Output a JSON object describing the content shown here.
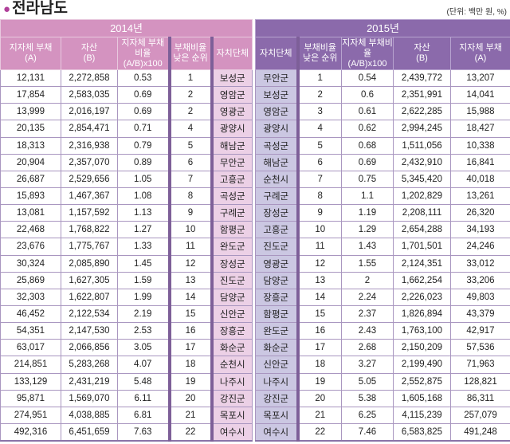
{
  "title": "전라남도",
  "unit": "(단위: 백만 원, %)",
  "colors": {
    "y2014_header": "#d493c0",
    "y2015_header": "#8b6aab",
    "name_2014": "#ecd0e6",
    "name_2015": "#cbc7e2",
    "title_bullet": "#b0409a"
  },
  "y2014": {
    "year": "2014년",
    "headers": [
      "지자체 부채\n(A)",
      "자산\n(B)",
      "지자체 부채비율\n(A/B)x100",
      "부채비율\n낮은 순위",
      "자치단체"
    ],
    "rows": [
      [
        "12,131",
        "2,272,858",
        "0.53",
        "1",
        "보성군"
      ],
      [
        "17,854",
        "2,583,035",
        "0.69",
        "2",
        "영암군"
      ],
      [
        "13,999",
        "2,016,197",
        "0.69",
        "2",
        "영광군"
      ],
      [
        "20,135",
        "2,854,471",
        "0.71",
        "4",
        "광양시"
      ],
      [
        "18,313",
        "2,316,938",
        "0.79",
        "5",
        "해남군"
      ],
      [
        "20,904",
        "2,357,070",
        "0.89",
        "6",
        "무안군"
      ],
      [
        "26,687",
        "2,529,656",
        "1.05",
        "7",
        "고흥군"
      ],
      [
        "15,893",
        "1,467,367",
        "1.08",
        "8",
        "곡성군"
      ],
      [
        "13,081",
        "1,157,592",
        "1.13",
        "9",
        "구례군"
      ],
      [
        "22,468",
        "1,768,822",
        "1.27",
        "10",
        "함평군"
      ],
      [
        "23,676",
        "1,775,767",
        "1.33",
        "11",
        "완도군"
      ],
      [
        "30,324",
        "2,085,890",
        "1.45",
        "12",
        "장성군"
      ],
      [
        "25,869",
        "1,627,305",
        "1.59",
        "13",
        "진도군"
      ],
      [
        "32,303",
        "1,622,807",
        "1.99",
        "14",
        "담양군"
      ],
      [
        "46,452",
        "2,122,534",
        "2.19",
        "15",
        "신안군"
      ],
      [
        "54,351",
        "2,147,530",
        "2.53",
        "16",
        "장흥군"
      ],
      [
        "63,017",
        "2,066,856",
        "3.05",
        "17",
        "화순군"
      ],
      [
        "214,851",
        "5,283,268",
        "4.07",
        "18",
        "순천시"
      ],
      [
        "133,129",
        "2,431,219",
        "5.48",
        "19",
        "나주시"
      ],
      [
        "95,871",
        "1,569,070",
        "6.11",
        "20",
        "강진군"
      ],
      [
        "274,951",
        "4,038,885",
        "6.81",
        "21",
        "목포시"
      ],
      [
        "492,316",
        "6,451,659",
        "7.63",
        "22",
        "여수시"
      ]
    ]
  },
  "y2015": {
    "year": "2015년",
    "headers": [
      "자치단체",
      "부채비율\n낮은 순위",
      "지자체 부채비율\n(A/B)x100",
      "자산\n(B)",
      "지자체 부채\n(A)"
    ],
    "rows": [
      [
        "무안군",
        "1",
        "0.54",
        "2,439,772",
        "13,207"
      ],
      [
        "보성군",
        "2",
        "0.6",
        "2,351,991",
        "14,041"
      ],
      [
        "영암군",
        "3",
        "0.61",
        "2,622,285",
        "15,988"
      ],
      [
        "광양시",
        "4",
        "0.62",
        "2,994,245",
        "18,427"
      ],
      [
        "곡성군",
        "5",
        "0.68",
        "1,511,056",
        "10,338"
      ],
      [
        "해남군",
        "6",
        "0.69",
        "2,432,910",
        "16,841"
      ],
      [
        "순천시",
        "7",
        "0.75",
        "5,345,420",
        "40,018"
      ],
      [
        "구례군",
        "8",
        "1.1",
        "1,202,829",
        "13,261"
      ],
      [
        "장성군",
        "9",
        "1.19",
        "2,208,111",
        "26,320"
      ],
      [
        "고흥군",
        "10",
        "1.29",
        "2,654,288",
        "34,193"
      ],
      [
        "진도군",
        "11",
        "1.43",
        "1,701,501",
        "24,246"
      ],
      [
        "영광군",
        "12",
        "1.55",
        "2,124,351",
        "33,012"
      ],
      [
        "담양군",
        "13",
        "2",
        "1,662,254",
        "33,206"
      ],
      [
        "장흥군",
        "14",
        "2.24",
        "2,226,023",
        "49,803"
      ],
      [
        "함평군",
        "15",
        "2.37",
        "1,826,894",
        "43,379"
      ],
      [
        "완도군",
        "16",
        "2.43",
        "1,763,100",
        "42,917"
      ],
      [
        "화순군",
        "17",
        "2.68",
        "2,150,209",
        "57,536"
      ],
      [
        "신안군",
        "18",
        "3.27",
        "2,199,490",
        "71,963"
      ],
      [
        "나주시",
        "19",
        "5.05",
        "2,552,875",
        "128,821"
      ],
      [
        "강진군",
        "20",
        "5.38",
        "1,605,168",
        "86,311"
      ],
      [
        "목포시",
        "21",
        "6.25",
        "4,115,239",
        "257,079"
      ],
      [
        "여수시",
        "22",
        "7.46",
        "6,583,825",
        "491,248"
      ]
    ]
  }
}
